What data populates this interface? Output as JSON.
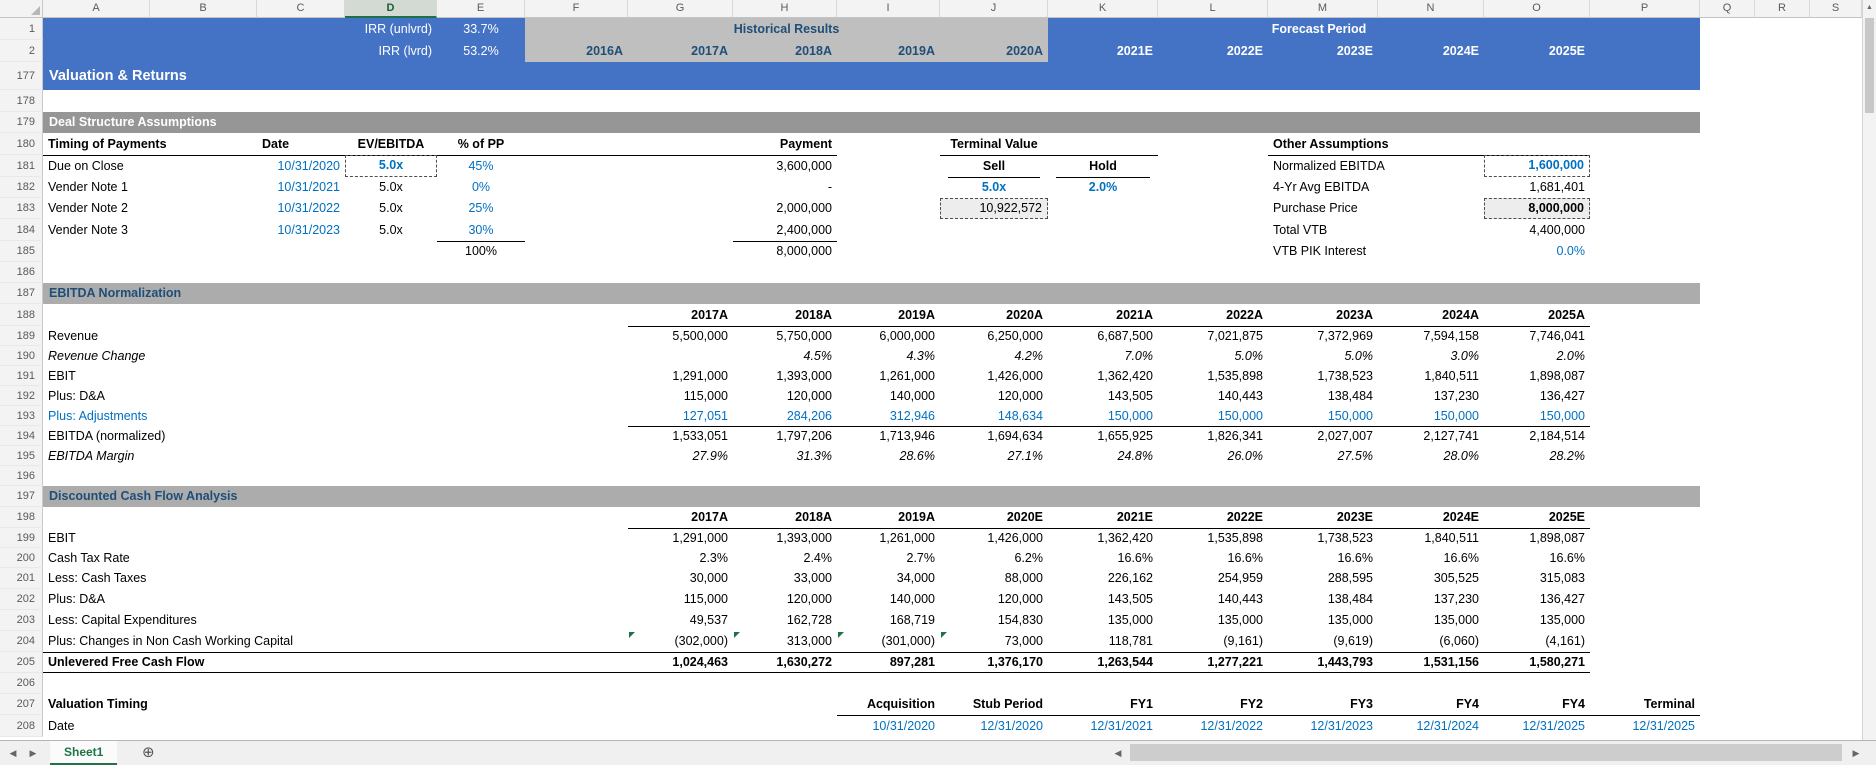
{
  "grid": {
    "column_letters": [
      "A",
      "B",
      "C",
      "D",
      "E",
      "F",
      "G",
      "H",
      "I",
      "J",
      "K",
      "L",
      "M",
      "N",
      "O",
      "P",
      "Q",
      "R",
      "S"
    ],
    "row_numbers": [
      "1",
      "2",
      "177",
      "178",
      "179",
      "180",
      "181",
      "182",
      "183",
      "184",
      "185",
      "186",
      "187",
      "188",
      "189",
      "190",
      "191",
      "192",
      "193",
      "194",
      "195",
      "196",
      "197",
      "198",
      "199",
      "200",
      "201",
      "202",
      "203",
      "204",
      "205",
      "206",
      "207",
      "208"
    ],
    "selected_column": "D"
  },
  "top_banner": {
    "irr_rows": [
      {
        "label": "IRR (unlvrd)",
        "value": "33.7%"
      },
      {
        "label": "IRR (lvrd)",
        "value": "53.2%"
      }
    ],
    "historical_label": "Historical Results",
    "forecast_label": "Forecast Period",
    "years": [
      "2016A",
      "2017A",
      "2018A",
      "2019A",
      "2020A",
      "2021E",
      "2022E",
      "2023E",
      "2024E",
      "2025E"
    ]
  },
  "page_title": "Valuation & Returns",
  "deal_structure": {
    "section_title": "Deal Structure Assumptions",
    "col_headers": {
      "timing": "Timing of Payments",
      "date": "Date",
      "ev_ebitda": "EV/EBITDA",
      "pct_pp": "% of PP",
      "payment": "Payment"
    },
    "payments": [
      {
        "name": "Due on Close",
        "date": "10/31/2020",
        "multiple": "5.0x",
        "pct": "45%",
        "payment": "3,600,000"
      },
      {
        "name": "Vender Note 1",
        "date": "10/31/2021",
        "multiple": "5.0x",
        "pct": "0%",
        "payment": "-"
      },
      {
        "name": "Vender Note 2",
        "date": "10/31/2022",
        "multiple": "5.0x",
        "pct": "25%",
        "payment": "2,000,000"
      },
      {
        "name": "Vender Note 3",
        "date": "10/31/2023",
        "multiple": "5.0x",
        "pct": "30%",
        "payment": "2,400,000"
      }
    ],
    "total_pct": "100%",
    "total_payment": "8,000,000",
    "terminal_value": {
      "title": "Terminal Value",
      "sell_label": "Sell",
      "hold_label": "Hold",
      "sell_multiple": "5.0x",
      "hold_rate": "2.0%",
      "sell_value": "10,922,572"
    },
    "other_assumptions": {
      "title": "Other Assumptions",
      "items": [
        {
          "label": "Normalized EBITDA",
          "value": "1,600,000"
        },
        {
          "label": "4-Yr Avg EBITDA",
          "value": "1,681,401"
        },
        {
          "label": "Purchase Price",
          "value": "8,000,000"
        },
        {
          "label": "Total VTB",
          "value": "4,400,000"
        },
        {
          "label": "VTB PIK Interest",
          "value": "0.0%"
        }
      ]
    }
  },
  "ebitda_normalization": {
    "section_title": "EBITDA Normalization",
    "years": [
      "2017A",
      "2018A",
      "2019A",
      "2020A",
      "2021A",
      "2022A",
      "2023A",
      "2024A",
      "2025A"
    ],
    "rows": [
      {
        "label": "Revenue",
        "values": [
          "5,500,000",
          "5,750,000",
          "6,000,000",
          "6,250,000",
          "6,687,500",
          "7,021,875",
          "7,372,969",
          "7,594,158",
          "7,746,041"
        ]
      },
      {
        "label": "Revenue Change",
        "values": [
          "",
          "4.5%",
          "4.3%",
          "4.2%",
          "7.0%",
          "5.0%",
          "5.0%",
          "3.0%",
          "2.0%"
        ]
      },
      {
        "label": "EBIT",
        "values": [
          "1,291,000",
          "1,393,000",
          "1,261,000",
          "1,426,000",
          "1,362,420",
          "1,535,898",
          "1,738,523",
          "1,840,511",
          "1,898,087"
        ]
      },
      {
        "label": "Plus: D&A",
        "values": [
          "115,000",
          "120,000",
          "140,000",
          "120,000",
          "143,505",
          "140,443",
          "138,484",
          "137,230",
          "136,427"
        ]
      },
      {
        "label": "Plus: Adjustments",
        "values": [
          "127,051",
          "284,206",
          "312,946",
          "148,634",
          "150,000",
          "150,000",
          "150,000",
          "150,000",
          "150,000"
        ]
      },
      {
        "label": "EBITDA (normalized)",
        "values": [
          "1,533,051",
          "1,797,206",
          "1,713,946",
          "1,694,634",
          "1,655,925",
          "1,826,341",
          "2,027,007",
          "2,127,741",
          "2,184,514"
        ]
      },
      {
        "label": "EBITDA Margin",
        "values": [
          "27.9%",
          "31.3%",
          "28.6%",
          "27.1%",
          "24.8%",
          "26.0%",
          "27.5%",
          "28.0%",
          "28.2%"
        ]
      }
    ]
  },
  "dcf": {
    "section_title": "Discounted Cash Flow Analysis",
    "years": [
      "2017A",
      "2018A",
      "2019A",
      "2020E",
      "2021E",
      "2022E",
      "2023E",
      "2024E",
      "2025E"
    ],
    "rows": [
      {
        "label": "EBIT",
        "values": [
          "1,291,000",
          "1,393,000",
          "1,261,000",
          "1,426,000",
          "1,362,420",
          "1,535,898",
          "1,738,523",
          "1,840,511",
          "1,898,087"
        ]
      },
      {
        "label": "Cash Tax Rate",
        "values": [
          "2.3%",
          "2.4%",
          "2.7%",
          "6.2%",
          "16.6%",
          "16.6%",
          "16.6%",
          "16.6%",
          "16.6%"
        ]
      },
      {
        "label": "Less: Cash Taxes",
        "values": [
          "30,000",
          "33,000",
          "34,000",
          "88,000",
          "226,162",
          "254,959",
          "288,595",
          "305,525",
          "315,083"
        ]
      },
      {
        "label": "Plus: D&A",
        "values": [
          "115,000",
          "120,000",
          "140,000",
          "120,000",
          "143,505",
          "140,443",
          "138,484",
          "137,230",
          "136,427"
        ]
      },
      {
        "label": "Less: Capital Expenditures",
        "values": [
          "49,537",
          "162,728",
          "168,719",
          "154,830",
          "135,000",
          "135,000",
          "135,000",
          "135,000",
          "135,000"
        ]
      },
      {
        "label": "Plus: Changes in Non Cash Working Capital",
        "values": [
          "(302,000)",
          "313,000",
          "(301,000)",
          "73,000",
          "118,781",
          "(9,161)",
          "(9,619)",
          "(6,060)",
          "(4,161)"
        ]
      },
      {
        "label": "Unlevered Free Cash Flow",
        "values": [
          "1,024,463",
          "1,630,272",
          "897,281",
          "1,376,170",
          "1,263,544",
          "1,277,221",
          "1,443,793",
          "1,531,156",
          "1,580,271"
        ]
      }
    ]
  },
  "valuation_timing": {
    "label": "Valuation Timing",
    "headers": [
      "Acquisition",
      "Stub Period",
      "FY1",
      "FY2",
      "FY3",
      "FY4",
      "FY4",
      "Terminal"
    ],
    "date_label": "Date",
    "dates": [
      "10/31/2020",
      "12/31/2020",
      "12/31/2021",
      "12/31/2022",
      "12/31/2023",
      "12/31/2024",
      "12/31/2025",
      "12/31/2025"
    ]
  },
  "tab_bar": {
    "sheet_name": "Sheet1"
  },
  "icons": {
    "add_sheet": "⊕",
    "nav_left": "◀",
    "nav_right": "▶",
    "scroll_up": "▲",
    "scroll_left": "◀",
    "scroll_right": "▶"
  },
  "colors": {
    "accent_blue": "#4472C4",
    "historical_gray": "#BFBFBF",
    "section_gray_dark": "#969696",
    "section_gray": "#ACACAC",
    "input_blue": "#0070C0",
    "navy": "#1F4E79",
    "tab_green": "#217346",
    "flag_green": "#1E7145"
  }
}
